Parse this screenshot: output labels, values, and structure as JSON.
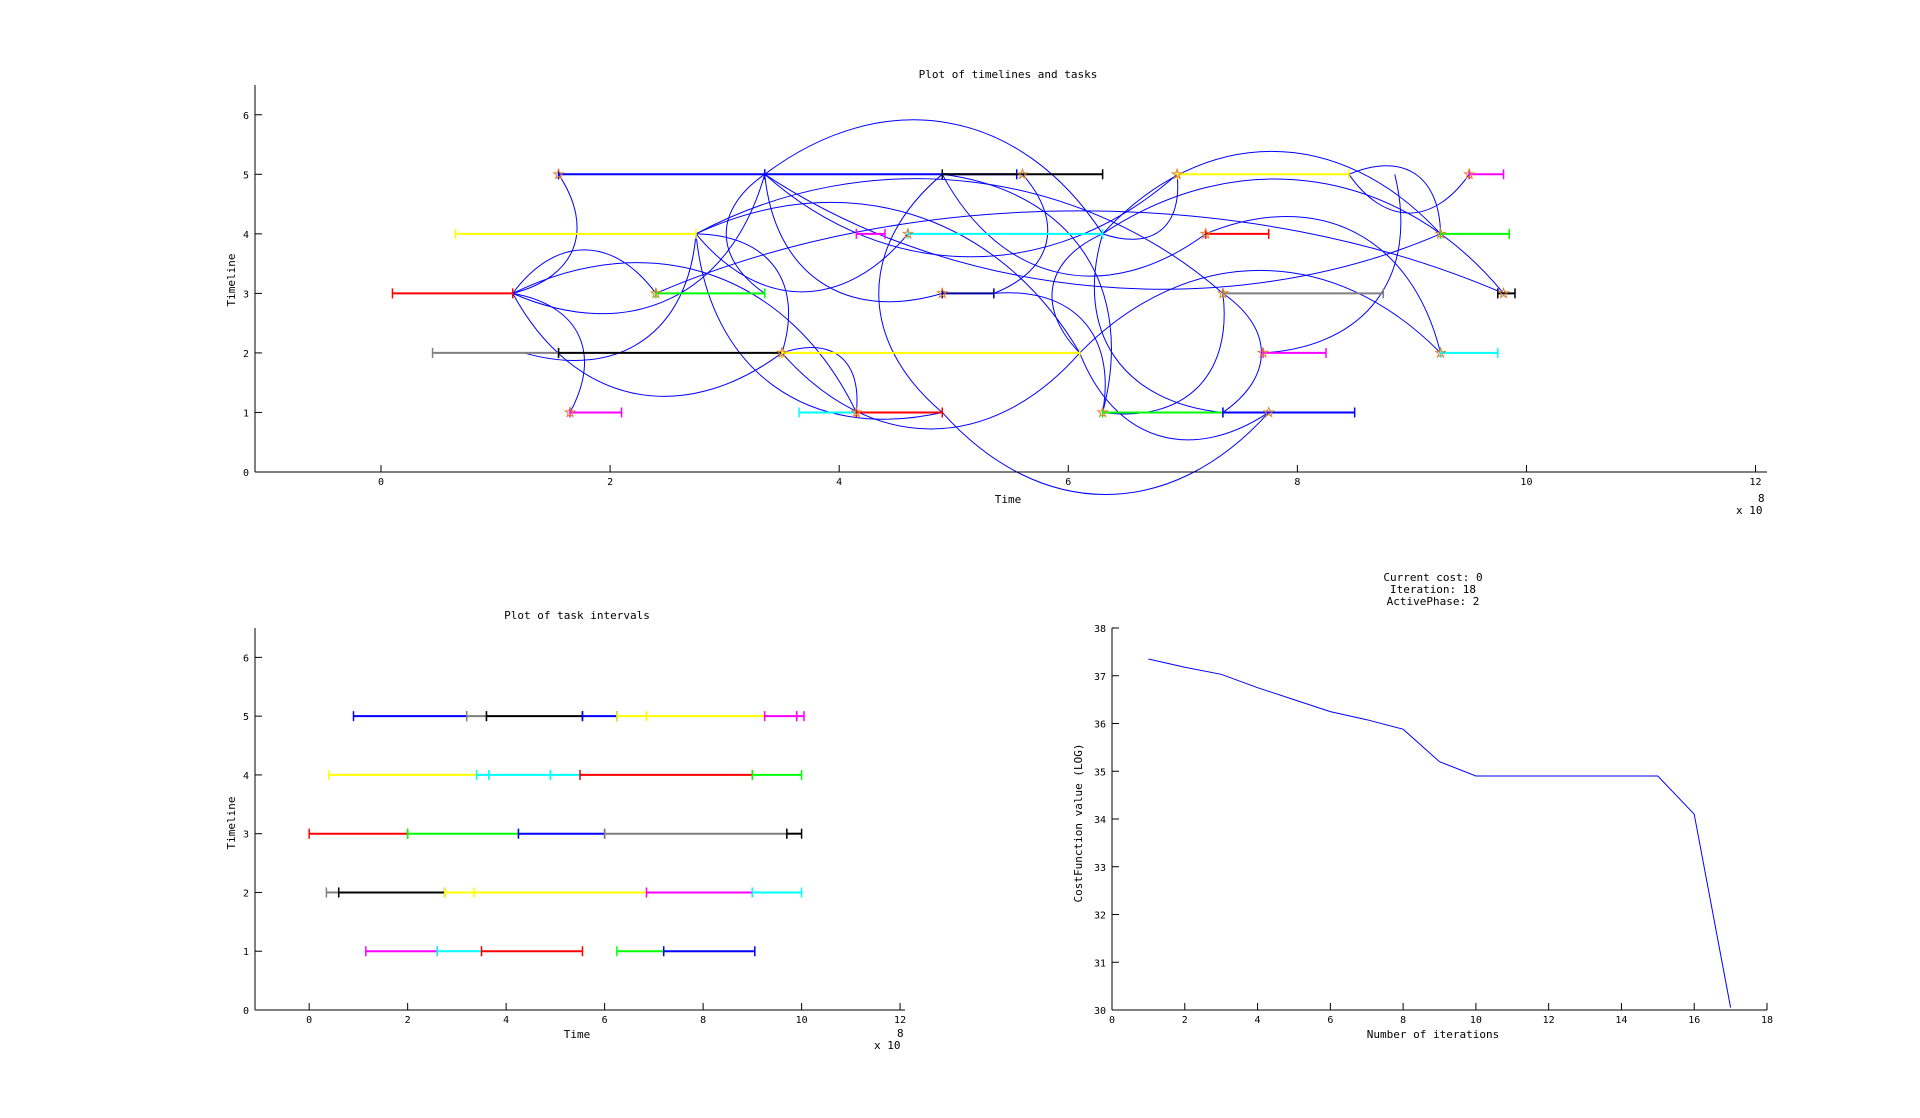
{
  "chart_data": [
    {
      "type": "line",
      "title": "Plot of timelines and tasks",
      "xlabel": "Time",
      "ylabel": "Timeline",
      "x_exponent_label": "x 10",
      "x_exponent": "8",
      "xlim": [
        -1.1,
        12.1
      ],
      "ylim": [
        0,
        6.5
      ],
      "xticks": [
        0,
        2,
        4,
        6,
        8,
        10,
        12
      ],
      "yticks": [
        0,
        1,
        2,
        3,
        4,
        5,
        6
      ],
      "tasks": [
        {
          "timeline": 5,
          "start": 1.55,
          "end": 3.35,
          "color": "#0000ff",
          "marker": 1.55
        },
        {
          "timeline": 5,
          "start": 3.35,
          "end": 5.55,
          "color": "#0000ff"
        },
        {
          "timeline": 5,
          "start": 4.9,
          "end": 6.3,
          "color": "#000000",
          "marker": 5.6
        },
        {
          "timeline": 5,
          "start": 6.95,
          "end": 8.45,
          "color": "#ffff00",
          "marker": 6.95
        },
        {
          "timeline": 5,
          "start": 9.5,
          "end": 9.8,
          "color": "#ff00ff",
          "marker": 9.5
        },
        {
          "timeline": 4,
          "start": 0.65,
          "end": 2.75,
          "color": "#ffff00"
        },
        {
          "timeline": 4,
          "start": 4.15,
          "end": 4.4,
          "color": "#ff00ff"
        },
        {
          "timeline": 4,
          "start": 4.6,
          "end": 6.3,
          "color": "#00ffff",
          "marker": 4.6
        },
        {
          "timeline": 4,
          "start": 7.2,
          "end": 7.75,
          "color": "#ff0000",
          "marker": 7.2
        },
        {
          "timeline": 4,
          "start": 9.25,
          "end": 9.85,
          "color": "#00ff00",
          "marker": 9.25
        },
        {
          "timeline": 3,
          "start": 0.1,
          "end": 1.15,
          "color": "#ff0000"
        },
        {
          "timeline": 3,
          "start": 2.4,
          "end": 3.35,
          "color": "#00ff00",
          "marker": 2.4
        },
        {
          "timeline": 3,
          "start": 4.9,
          "end": 5.35,
          "color": "#000099",
          "marker": 4.9
        },
        {
          "timeline": 3,
          "start": 7.35,
          "end": 8.75,
          "color": "#808080",
          "marker": 7.35
        },
        {
          "timeline": 3,
          "start": 9.75,
          "end": 9.9,
          "color": "#000000",
          "marker": 9.8
        },
        {
          "timeline": 2,
          "start": 0.45,
          "end": 1.55,
          "color": "#808080"
        },
        {
          "timeline": 2,
          "start": 1.55,
          "end": 3.5,
          "color": "#000000"
        },
        {
          "timeline": 2,
          "start": 3.5,
          "end": 6.1,
          "color": "#ffff00",
          "marker": 3.5
        },
        {
          "timeline": 2,
          "start": 7.7,
          "end": 8.25,
          "color": "#ff00ff",
          "marker": 7.7
        },
        {
          "timeline": 2,
          "start": 9.25,
          "end": 9.75,
          "color": "#00ffff",
          "marker": 9.25
        },
        {
          "timeline": 1,
          "start": 1.65,
          "end": 2.1,
          "color": "#ff00ff",
          "marker": 1.65
        },
        {
          "timeline": 1,
          "start": 3.65,
          "end": 4.15,
          "color": "#00ffff"
        },
        {
          "timeline": 1,
          "start": 4.15,
          "end": 4.9,
          "color": "#ff0000",
          "marker": 4.15
        },
        {
          "timeline": 1,
          "start": 6.3,
          "end": 7.35,
          "color": "#00ff00",
          "marker": 6.3
        },
        {
          "timeline": 1,
          "start": 7.35,
          "end": 8.5,
          "color": "#0000ff",
          "marker": 7.75
        }
      ],
      "connections": [
        [
          [
            1.15,
            3
          ],
          [
            1.55,
            5
          ]
        ],
        [
          [
            1.15,
            3
          ],
          [
            1.65,
            1
          ]
        ],
        [
          [
            1.15,
            3
          ],
          [
            3.35,
            5
          ]
        ],
        [
          [
            1.15,
            3
          ],
          [
            2.4,
            3
          ]
        ],
        [
          [
            1.15,
            3
          ],
          [
            3.5,
            2
          ]
        ],
        [
          [
            1.15,
            3
          ],
          [
            4.15,
            1
          ]
        ],
        [
          [
            1.25,
            2
          ],
          [
            2.75,
            4
          ]
        ],
        [
          [
            2.75,
            4
          ],
          [
            3.5,
            2
          ]
        ],
        [
          [
            2.75,
            4
          ],
          [
            4.6,
            4
          ]
        ],
        [
          [
            2.75,
            4
          ],
          [
            6.1,
            2
          ]
        ],
        [
          [
            2.75,
            4
          ],
          [
            4.9,
            1
          ]
        ],
        [
          [
            2.75,
            4
          ],
          [
            7.35,
            3
          ]
        ],
        [
          [
            3.35,
            5
          ],
          [
            4.9,
            3
          ]
        ],
        [
          [
            3.35,
            5
          ],
          [
            6.3,
            4
          ]
        ],
        [
          [
            3.35,
            5
          ],
          [
            9.25,
            4
          ]
        ],
        [
          [
            3.35,
            3
          ],
          [
            3.35,
            5
          ]
        ],
        [
          [
            3.35,
            5
          ],
          [
            6.95,
            5
          ]
        ],
        [
          [
            3.5,
            2
          ],
          [
            4.15,
            1
          ]
        ],
        [
          [
            3.5,
            2
          ],
          [
            6.1,
            2
          ]
        ],
        [
          [
            2.4,
            3
          ],
          [
            9.8,
            3
          ]
        ],
        [
          [
            4.9,
            5
          ],
          [
            4.9,
            1
          ]
        ],
        [
          [
            4.9,
            5
          ],
          [
            6.3,
            1
          ]
        ],
        [
          [
            4.9,
            5
          ],
          [
            7.2,
            4
          ]
        ],
        [
          [
            5.35,
            3
          ],
          [
            6.3,
            1
          ]
        ],
        [
          [
            5.35,
            3
          ],
          [
            5.6,
            5
          ]
        ],
        [
          [
            6.1,
            2
          ],
          [
            6.3,
            4
          ]
        ],
        [
          [
            6.1,
            2
          ],
          [
            7.75,
            1
          ]
        ],
        [
          [
            6.1,
            2
          ],
          [
            9.25,
            2
          ]
        ],
        [
          [
            6.3,
            4
          ],
          [
            6.95,
            5
          ]
        ],
        [
          [
            6.3,
            4
          ],
          [
            9.8,
            3
          ]
        ],
        [
          [
            6.3,
            4
          ],
          [
            7.35,
            1
          ]
        ],
        [
          [
            6.3,
            4
          ],
          [
            9.25,
            4
          ]
        ],
        [
          [
            6.3,
            1
          ],
          [
            7.35,
            3
          ]
        ],
        [
          [
            7.35,
            3
          ],
          [
            7.35,
            1
          ]
        ],
        [
          [
            7.7,
            2
          ],
          [
            8.85,
            5
          ]
        ],
        [
          [
            8.45,
            5
          ],
          [
            9.25,
            4
          ]
        ],
        [
          [
            8.45,
            5
          ],
          [
            9.5,
            5
          ]
        ],
        [
          [
            7.2,
            4
          ],
          [
            9.25,
            2
          ]
        ],
        [
          [
            4.9,
            1
          ],
          [
            7.75,
            1
          ]
        ]
      ]
    },
    {
      "type": "line",
      "title": "Plot of task intervals",
      "xlabel": "Time",
      "ylabel": "Timeline",
      "x_exponent_label": "x 10",
      "x_exponent": "8",
      "xlim": [
        -1.1,
        12.1
      ],
      "ylim": [
        0,
        6.5
      ],
      "xticks": [
        0,
        2,
        4,
        6,
        8,
        10,
        12
      ],
      "yticks": [
        0,
        1,
        2,
        3,
        4,
        5,
        6
      ],
      "tasks": [
        {
          "timeline": 5,
          "start": 0.9,
          "end": 3.2,
          "color": "#0000ff"
        },
        {
          "timeline": 5,
          "start": 3.2,
          "end": 3.6,
          "color": "#808080"
        },
        {
          "timeline": 5,
          "start": 3.6,
          "end": 5.55,
          "color": "#000000"
        },
        {
          "timeline": 5,
          "start": 5.55,
          "end": 6.25,
          "color": "#0000ff"
        },
        {
          "timeline": 5,
          "start": 6.25,
          "end": 6.85,
          "color": "#ffff00"
        },
        {
          "timeline": 5,
          "start": 6.85,
          "end": 9.25,
          "color": "#ffff00"
        },
        {
          "timeline": 5,
          "start": 9.25,
          "end": 9.9,
          "color": "#ff00ff"
        },
        {
          "timeline": 5,
          "start": 9.9,
          "end": 10.05,
          "color": "#ff00ff"
        },
        {
          "timeline": 4,
          "start": 0.4,
          "end": 3.4,
          "color": "#ffff00"
        },
        {
          "timeline": 4,
          "start": 3.4,
          "end": 3.65,
          "color": "#00ffff"
        },
        {
          "timeline": 4,
          "start": 3.65,
          "end": 4.9,
          "color": "#00ffff"
        },
        {
          "timeline": 4,
          "start": 4.9,
          "end": 5.5,
          "color": "#00ffff"
        },
        {
          "timeline": 4,
          "start": 5.5,
          "end": 9.0,
          "color": "#ff0000"
        },
        {
          "timeline": 4,
          "start": 9.0,
          "end": 10.0,
          "color": "#00ff00"
        },
        {
          "timeline": 3,
          "start": 0.0,
          "end": 2.0,
          "color": "#ff0000"
        },
        {
          "timeline": 3,
          "start": 2.0,
          "end": 4.25,
          "color": "#00ff00"
        },
        {
          "timeline": 3,
          "start": 4.25,
          "end": 6.0,
          "color": "#0000ff"
        },
        {
          "timeline": 3,
          "start": 6.0,
          "end": 9.7,
          "color": "#808080"
        },
        {
          "timeline": 3,
          "start": 9.7,
          "end": 10.0,
          "color": "#000000"
        },
        {
          "timeline": 2,
          "start": 0.35,
          "end": 0.6,
          "color": "#808080"
        },
        {
          "timeline": 2,
          "start": 0.6,
          "end": 2.75,
          "color": "#000000"
        },
        {
          "timeline": 2,
          "start": 2.75,
          "end": 3.35,
          "color": "#ffff00"
        },
        {
          "timeline": 2,
          "start": 3.35,
          "end": 6.85,
          "color": "#ffff00"
        },
        {
          "timeline": 2,
          "start": 6.85,
          "end": 9.0,
          "color": "#ff00ff"
        },
        {
          "timeline": 2,
          "start": 9.0,
          "end": 10.0,
          "color": "#00ffff"
        },
        {
          "timeline": 1,
          "start": 1.15,
          "end": 2.6,
          "color": "#ff00ff"
        },
        {
          "timeline": 1,
          "start": 2.6,
          "end": 3.5,
          "color": "#00ffff"
        },
        {
          "timeline": 1,
          "start": 3.5,
          "end": 5.55,
          "color": "#ff0000"
        },
        {
          "timeline": 1,
          "start": 6.25,
          "end": 7.2,
          "color": "#00ff00"
        },
        {
          "timeline": 1,
          "start": 7.2,
          "end": 9.05,
          "color": "#0000ff"
        }
      ]
    },
    {
      "type": "line",
      "title_lines": [
        "Current cost: 0",
        "Iteration: 18",
        "ActivePhase: 2"
      ],
      "xlabel": "Number of iterations",
      "ylabel": "CostFunction value (LOG)",
      "xlim": [
        0,
        18
      ],
      "ylim": [
        30,
        38
      ],
      "xticks": [
        0,
        2,
        4,
        6,
        8,
        10,
        12,
        14,
        16,
        18
      ],
      "yticks": [
        30,
        31,
        32,
        33,
        34,
        35,
        36,
        37,
        38
      ],
      "series": [
        {
          "color": "#0000ff",
          "x": [
            1,
            2,
            3,
            4,
            5,
            6,
            7,
            8,
            9,
            10,
            11,
            12,
            13,
            14,
            15,
            16,
            17
          ],
          "y": [
            37.35,
            37.18,
            37.03,
            36.75,
            36.5,
            36.25,
            36.08,
            35.88,
            35.2,
            34.9,
            34.9,
            34.9,
            34.9,
            34.9,
            34.9,
            34.1,
            30.05
          ]
        }
      ]
    }
  ]
}
